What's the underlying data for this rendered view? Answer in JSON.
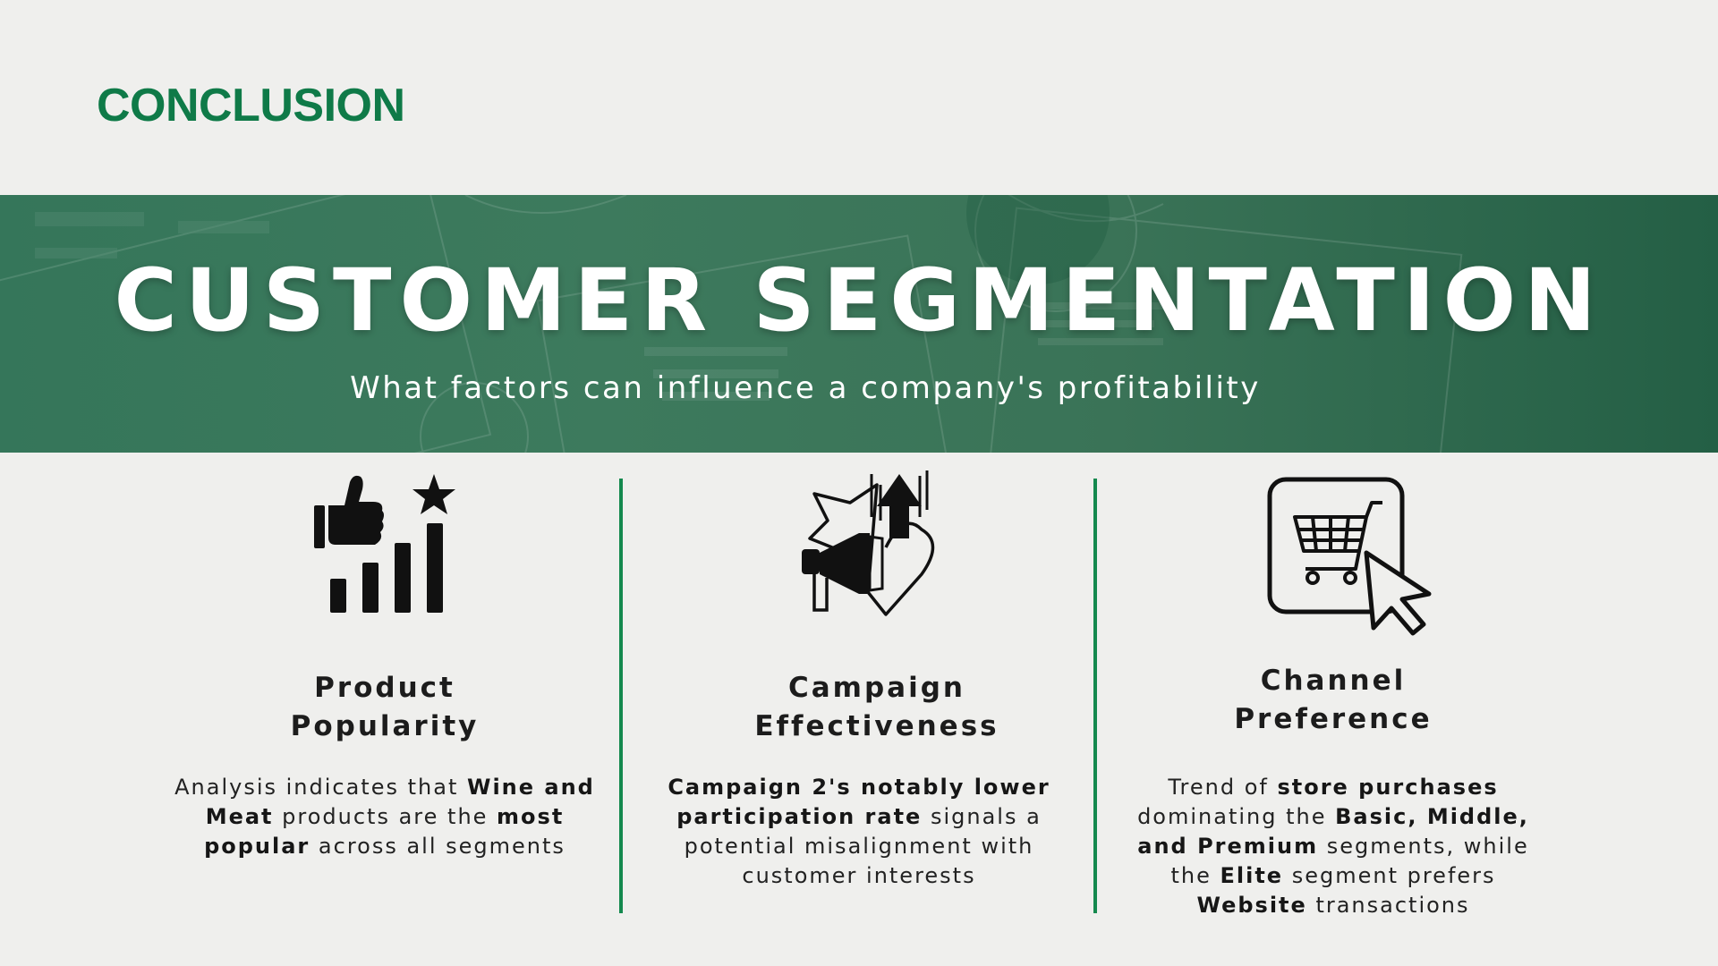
{
  "header": {
    "section_label": "CONCLUSION"
  },
  "banner": {
    "title": "CUSTOMER SEGMENTATION",
    "subtitle": "What factors can influence a company's profitability"
  },
  "columns": [
    {
      "icon": "thumbs-up-rating-bars-icon",
      "title_line1": "Product",
      "title_line2": "Popularity",
      "text": [
        {
          "t": "Analysis indicates that ",
          "b": false
        },
        {
          "t": "Wine and",
          "b": true
        },
        {
          "t": "\n",
          "b": false
        },
        {
          "t": "Meat",
          "b": true
        },
        {
          "t": " products are the ",
          "b": false
        },
        {
          "t": "most",
          "b": true
        },
        {
          "t": "\n",
          "b": false
        },
        {
          "t": "popular",
          "b": true
        },
        {
          "t": " across all segments",
          "b": false
        }
      ]
    },
    {
      "icon": "megaphone-heart-arrow-icon",
      "title_line1": "Campaign",
      "title_line2": "Effectiveness",
      "text": [
        {
          "t": "Campaign 2's notably lower",
          "b": true
        },
        {
          "t": "\n",
          "b": false
        },
        {
          "t": "participation rate",
          "b": true
        },
        {
          "t": " signals a",
          "b": false
        },
        {
          "t": "\n",
          "b": false
        },
        {
          "t": "potential misalignment with",
          "b": false
        },
        {
          "t": "\n",
          "b": false
        },
        {
          "t": "customer interests",
          "b": false
        }
      ]
    },
    {
      "icon": "shopping-cart-cursor-icon",
      "title_line1": "Channel",
      "title_line2": "Preference",
      "text": [
        {
          "t": "Trend of ",
          "b": false
        },
        {
          "t": "store purchases",
          "b": true
        },
        {
          "t": "\n",
          "b": false
        },
        {
          "t": "dominating the ",
          "b": false
        },
        {
          "t": "Basic, Middle,",
          "b": true
        },
        {
          "t": "\n",
          "b": false
        },
        {
          "t": "and Premium",
          "b": true
        },
        {
          "t": " segments, while",
          "b": false
        },
        {
          "t": "\n",
          "b": false
        },
        {
          "t": "the ",
          "b": false
        },
        {
          "t": "Elite",
          "b": true
        },
        {
          "t": " segment prefers",
          "b": false
        },
        {
          "t": "\n",
          "b": false
        },
        {
          "t": "Website",
          "b": true
        },
        {
          "t": " transactions",
          "b": false
        }
      ]
    }
  ],
  "colors": {
    "accent_green": "#0f7a48",
    "banner_green": "#3a7357",
    "divider_green": "#14894e"
  }
}
